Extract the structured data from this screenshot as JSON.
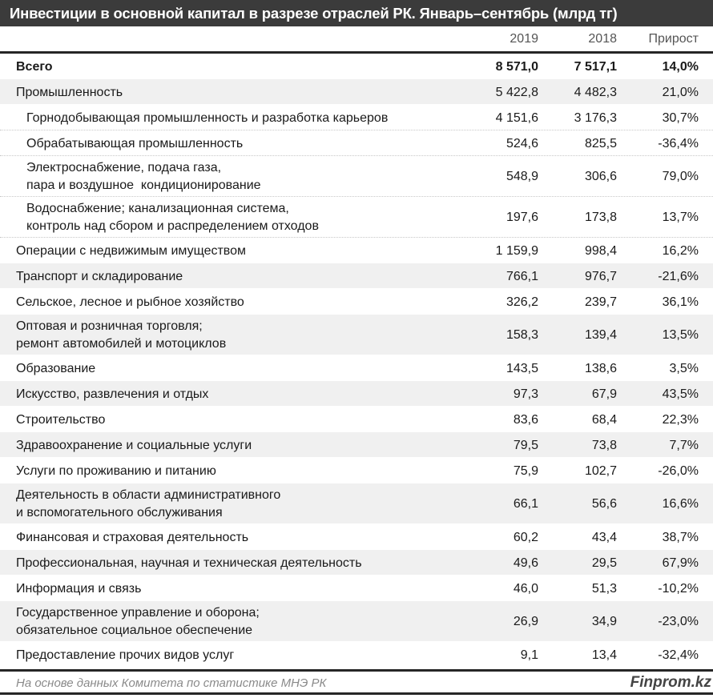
{
  "title": "Инвестиции в основной капитал в разрезе отраслей РК. Январь–сентябрь (млрд тг)",
  "columns": [
    "2019",
    "2018",
    "Прирост"
  ],
  "rows": [
    {
      "label": "Всего",
      "v2019": "8 571,0",
      "v2018": "7 517,1",
      "growth": "14,0%",
      "bold": true
    },
    {
      "label": "Промышленность",
      "v2019": "5 422,8",
      "v2018": "4 482,3",
      "growth": "21,0%"
    },
    {
      "label": "Горнодобывающая промышленность и разработка карьеров",
      "v2019": "4 151,6",
      "v2018": "3 176,3",
      "growth": "30,7%",
      "sub": true
    },
    {
      "label": "Обрабатывающая промышленность",
      "v2019": "524,6",
      "v2018": "825,5",
      "growth": "-36,4%",
      "sub": true
    },
    {
      "label": "Электроснабжение, подача газа,\nпара и воздушное  кондиционирование",
      "v2019": "548,9",
      "v2018": "306,6",
      "growth": "79,0%",
      "sub": true
    },
    {
      "label": "Водоснабжение; канализационная система,\nконтроль над сбором и распределением отходов",
      "v2019": "197,6",
      "v2018": "173,8",
      "growth": "13,7%",
      "sub": true
    },
    {
      "label": "Операции с недвижимым имуществом",
      "v2019": "1 159,9",
      "v2018": "998,4",
      "growth": "16,2%"
    },
    {
      "label": "Транспорт и складирование",
      "v2019": "766,1",
      "v2018": "976,7",
      "growth": "-21,6%"
    },
    {
      "label": "Сельское, лесное и рыбное хозяйство",
      "v2019": "326,2",
      "v2018": "239,7",
      "growth": "36,1%"
    },
    {
      "label": "Оптовая и розничная торговля;\nремонт автомобилей и мотоциклов",
      "v2019": "158,3",
      "v2018": "139,4",
      "growth": "13,5%"
    },
    {
      "label": "Образование",
      "v2019": "143,5",
      "v2018": "138,6",
      "growth": "3,5%"
    },
    {
      "label": "Искусство, развлечения и отдых",
      "v2019": "97,3",
      "v2018": "67,9",
      "growth": "43,5%"
    },
    {
      "label": "Строительство",
      "v2019": "83,6",
      "v2018": "68,4",
      "growth": "22,3%"
    },
    {
      "label": "Здравоохранение и социальные услуги",
      "v2019": "79,5",
      "v2018": "73,8",
      "growth": "7,7%"
    },
    {
      "label": "Услуги по проживанию и питанию",
      "v2019": "75,9",
      "v2018": "102,7",
      "growth": "-26,0%"
    },
    {
      "label": "Деятельность в области административного\nи вспомогательного обслуживания",
      "v2019": "66,1",
      "v2018": "56,6",
      "growth": "16,6%"
    },
    {
      "label": "Финансовая и страховая деятельность",
      "v2019": "60,2",
      "v2018": "43,4",
      "growth": "38,7%"
    },
    {
      "label": "Профессиональная, научная и техническая деятельность",
      "v2019": "49,6",
      "v2018": "29,5",
      "growth": "67,9%"
    },
    {
      "label": "Информация и связь",
      "v2019": "46,0",
      "v2018": "51,3",
      "growth": "-10,2%"
    },
    {
      "label": "Государственное управление и оборона;\nобязательное социальное обеспечение",
      "v2019": "26,9",
      "v2018": "34,9",
      "growth": "-23,0%"
    },
    {
      "label": "Предоставление прочих видов услуг",
      "v2019": "9,1",
      "v2018": "13,4",
      "growth": "-32,4%"
    }
  ],
  "footer": {
    "source": "На основе данных Комитета по статистике МНЭ РК",
    "brand": "Finprom.kz"
  },
  "colors": {
    "title_bg": "#3b3b3b",
    "row_alt": "#f0f0f0"
  }
}
